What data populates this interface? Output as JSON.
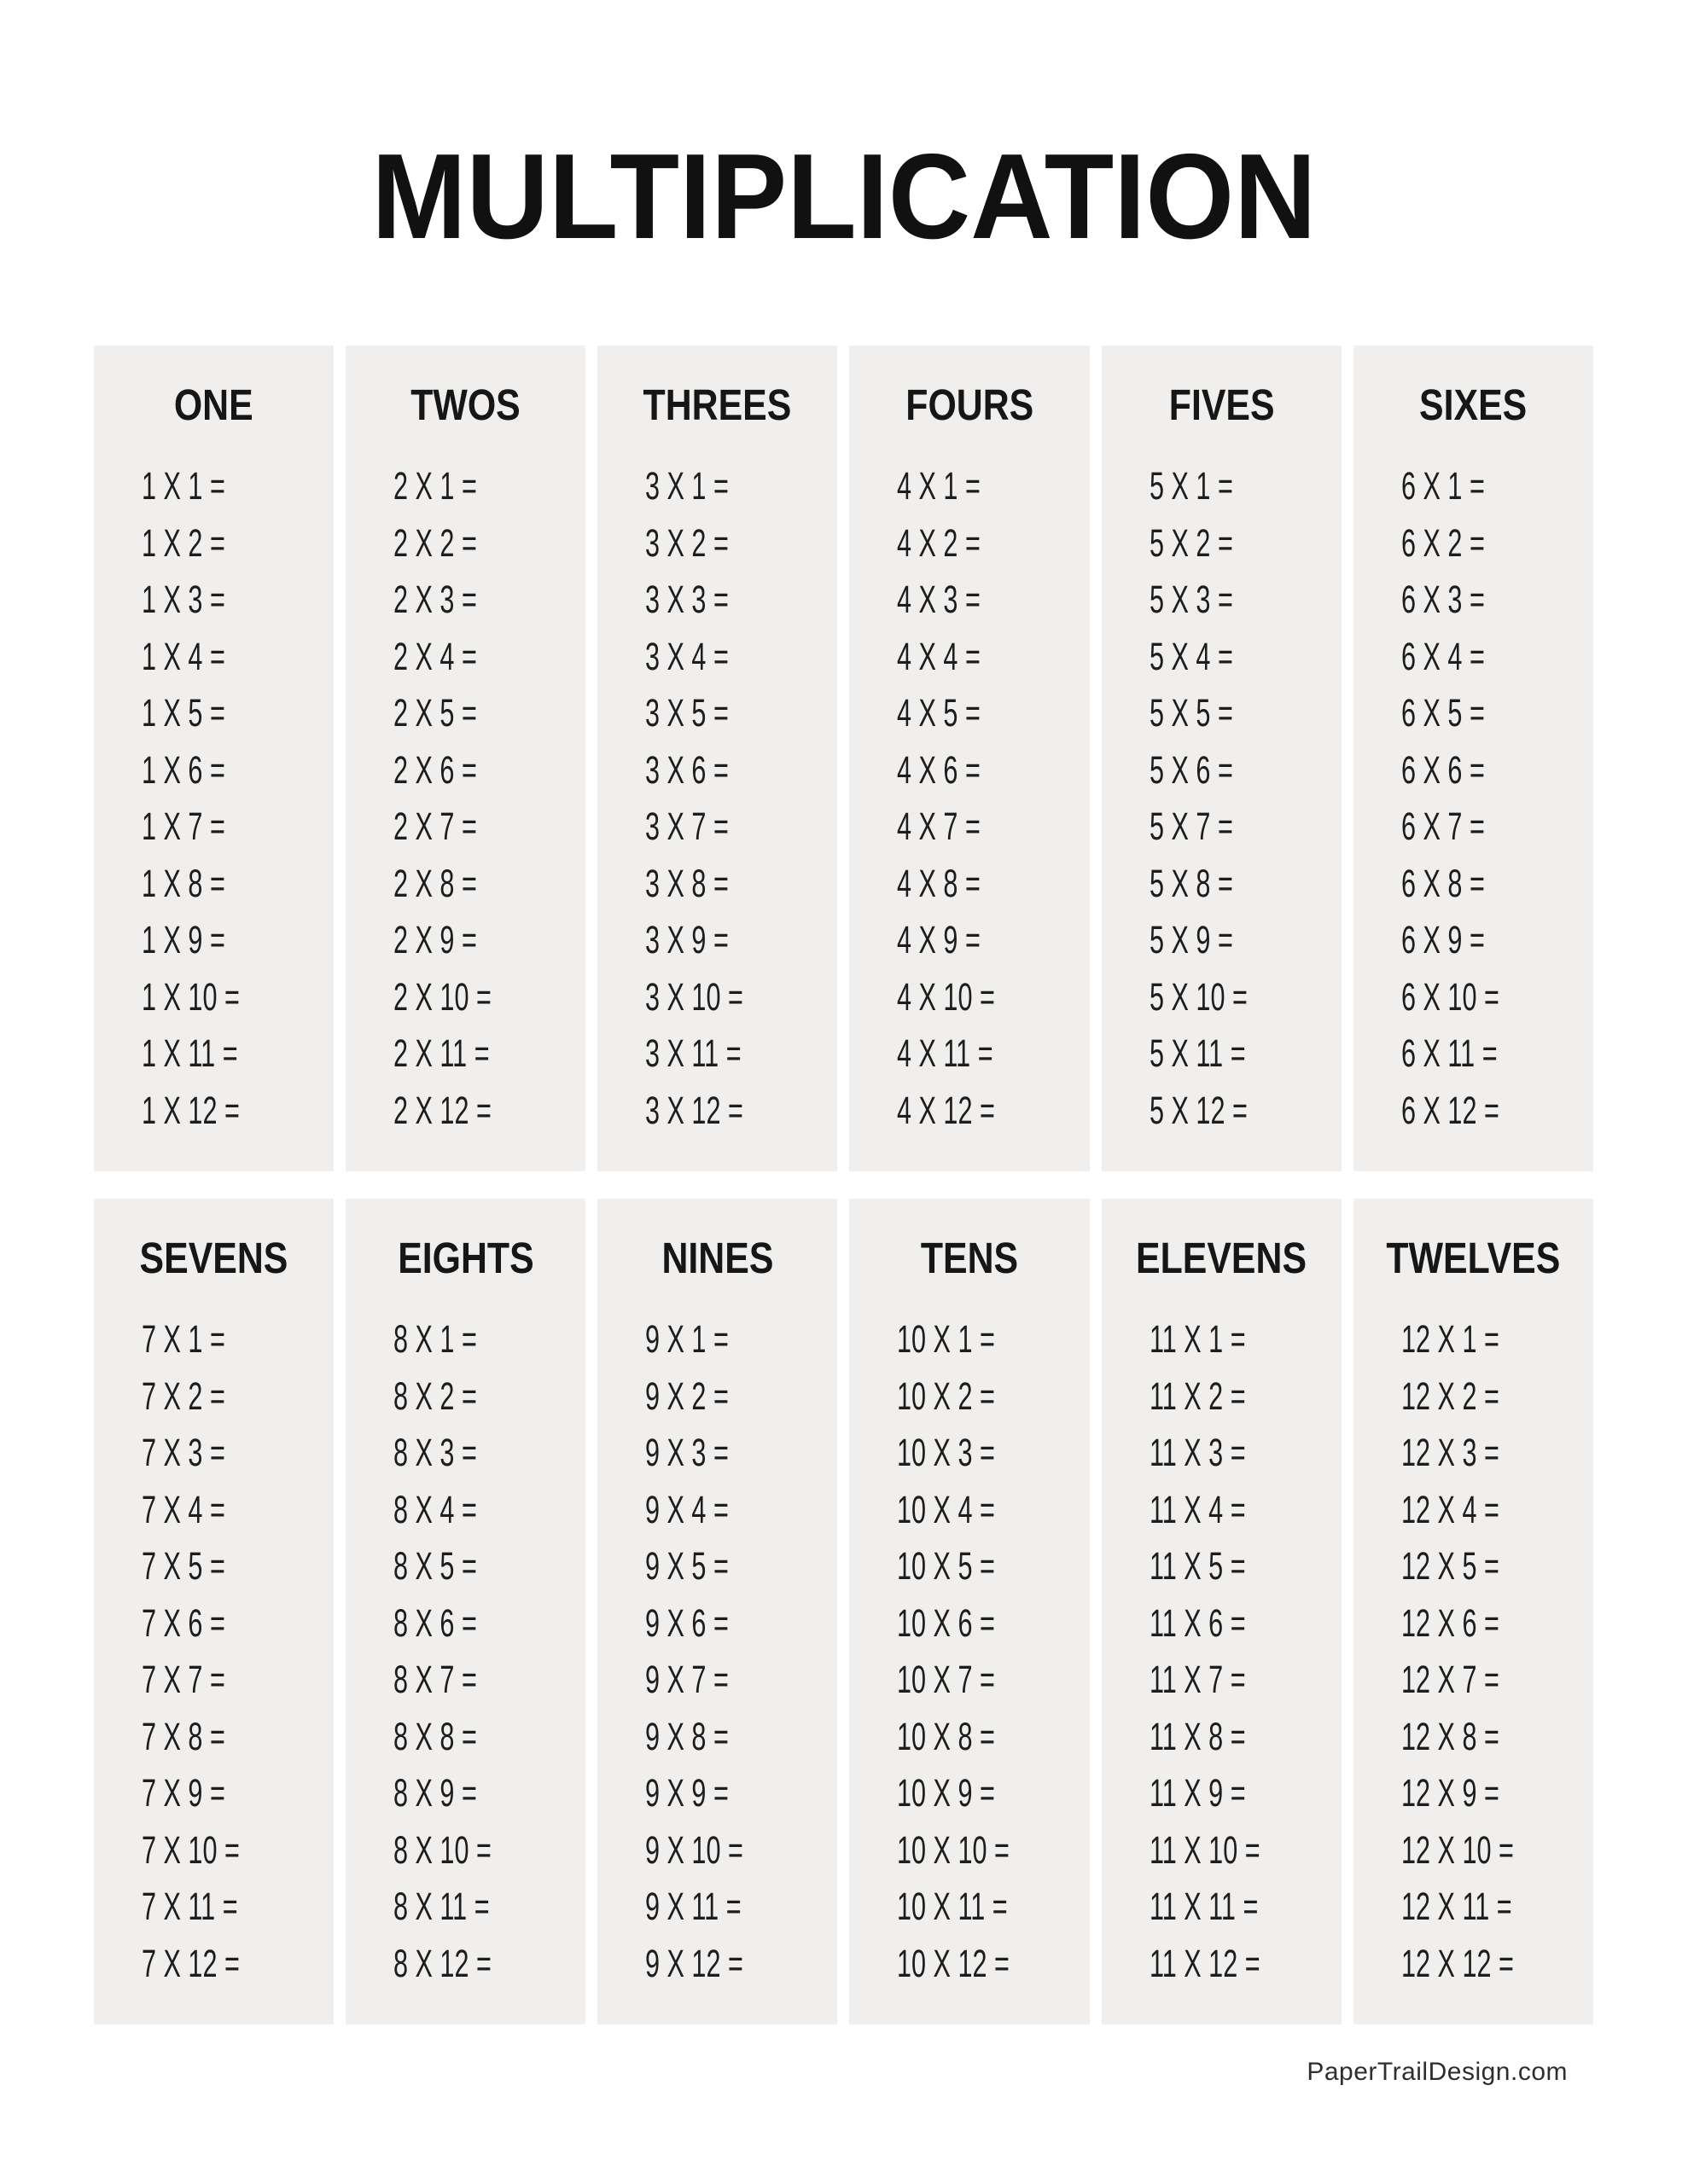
{
  "page": {
    "title": "MULTIPLICATION",
    "footer": "PaperTrailDesign.com"
  },
  "colors": {
    "page_bg": "#ffffff",
    "block_bg": "#f0efee",
    "text": "#1d1d1d",
    "title": "#111111"
  },
  "tables": [
    {
      "header": "ONE",
      "rows": [
        "1 X 1 =",
        "1 X 2 =",
        "1 X 3 =",
        "1 X 4 =",
        "1 X 5 =",
        "1 X 6 =",
        "1 X 7 =",
        "1 X 8 =",
        "1 X 9 =",
        "1 X 10 =",
        "1 X 11 =",
        "1 X 12 ="
      ]
    },
    {
      "header": "TWOS",
      "rows": [
        "2 X 1 =",
        "2 X 2 =",
        "2 X 3 =",
        "2 X 4 =",
        "2 X 5 =",
        "2 X 6 =",
        "2 X 7 =",
        "2 X 8 =",
        "2 X 9 =",
        "2 X 10 =",
        "2 X 11 =",
        "2 X 12 ="
      ]
    },
    {
      "header": "THREES",
      "rows": [
        "3 X 1 =",
        "3 X 2 =",
        "3 X 3 =",
        "3 X 4 =",
        "3 X 5 =",
        "3 X 6 =",
        "3 X 7 =",
        "3 X 8 =",
        "3 X 9 =",
        "3 X 10 =",
        "3 X 11 =",
        "3 X 12 ="
      ]
    },
    {
      "header": "FOURS",
      "rows": [
        "4 X 1 =",
        "4 X 2 =",
        "4 X 3 =",
        "4 X 4 =",
        "4 X 5 =",
        "4 X 6 =",
        "4 X 7 =",
        "4 X 8 =",
        "4 X 9 =",
        "4 X 10 =",
        "4 X 11 =",
        "4 X 12 ="
      ]
    },
    {
      "header": "FIVES",
      "rows": [
        "5 X 1 =",
        "5 X 2 =",
        "5 X 3 =",
        "5 X 4 =",
        "5 X 5 =",
        "5 X 6 =",
        "5 X 7 =",
        "5 X 8 =",
        "5 X 9 =",
        "5 X 10 =",
        "5 X 11 =",
        "5 X 12 ="
      ]
    },
    {
      "header": "SIXES",
      "rows": [
        "6 X 1 =",
        "6 X 2 =",
        "6 X 3 =",
        "6 X 4 =",
        "6 X 5 =",
        "6 X 6 =",
        "6 X 7 =",
        "6 X 8 =",
        "6 X 9 =",
        "6 X 10 =",
        "6 X 11 =",
        "6 X 12 ="
      ]
    },
    {
      "header": "SEVENS",
      "rows": [
        "7 X 1 =",
        "7 X 2 =",
        "7 X 3 =",
        "7 X 4 =",
        "7 X 5 =",
        "7 X 6 =",
        "7 X 7 =",
        "7 X 8 =",
        "7 X 9 =",
        "7 X 10 =",
        "7 X 11 =",
        "7 X 12 ="
      ]
    },
    {
      "header": "EIGHTS",
      "rows": [
        "8 X 1 =",
        "8 X 2 =",
        "8 X 3 =",
        "8 X 4 =",
        "8 X 5 =",
        "8 X 6 =",
        "8 X 7 =",
        "8 X 8 =",
        "8 X 9 =",
        "8 X 10 =",
        "8 X 11 =",
        "8 X 12 ="
      ]
    },
    {
      "header": "NINES",
      "rows": [
        "9 X 1 =",
        "9 X 2 =",
        "9 X 3 =",
        "9 X 4 =",
        "9 X 5 =",
        "9 X 6 =",
        "9 X 7 =",
        "9 X 8 =",
        "9 X 9 =",
        "9 X 10 =",
        "9 X 11 =",
        "9 X 12 ="
      ]
    },
    {
      "header": "TENS",
      "rows": [
        "10 X 1 =",
        "10 X 2 =",
        "10 X 3 =",
        "10 X 4 =",
        "10 X 5 =",
        "10 X 6 =",
        "10 X 7 =",
        "10 X 8 =",
        "10 X 9 =",
        "10 X 10 =",
        "10 X 11 =",
        "10 X 12 ="
      ]
    },
    {
      "header": "ELEVENS",
      "rows": [
        "11 X 1 =",
        "11 X 2 =",
        "11 X 3 =",
        "11 X 4 =",
        "11 X 5 =",
        "11 X 6 =",
        "11 X 7 =",
        "11 X 8 =",
        "11 X 9 =",
        "11 X 10 =",
        "11 X 11 =",
        "11 X 12 ="
      ]
    },
    {
      "header": "TWELVES",
      "rows": [
        "12 X 1 =",
        "12 X 2 =",
        "12 X 3 =",
        "12 X 4 =",
        "12 X 5 =",
        "12 X 6 =",
        "12 X 7 =",
        "12 X 8 =",
        "12 X 9 =",
        "12 X 10 =",
        "12 X 11 =",
        "12 X 12 ="
      ]
    }
  ]
}
